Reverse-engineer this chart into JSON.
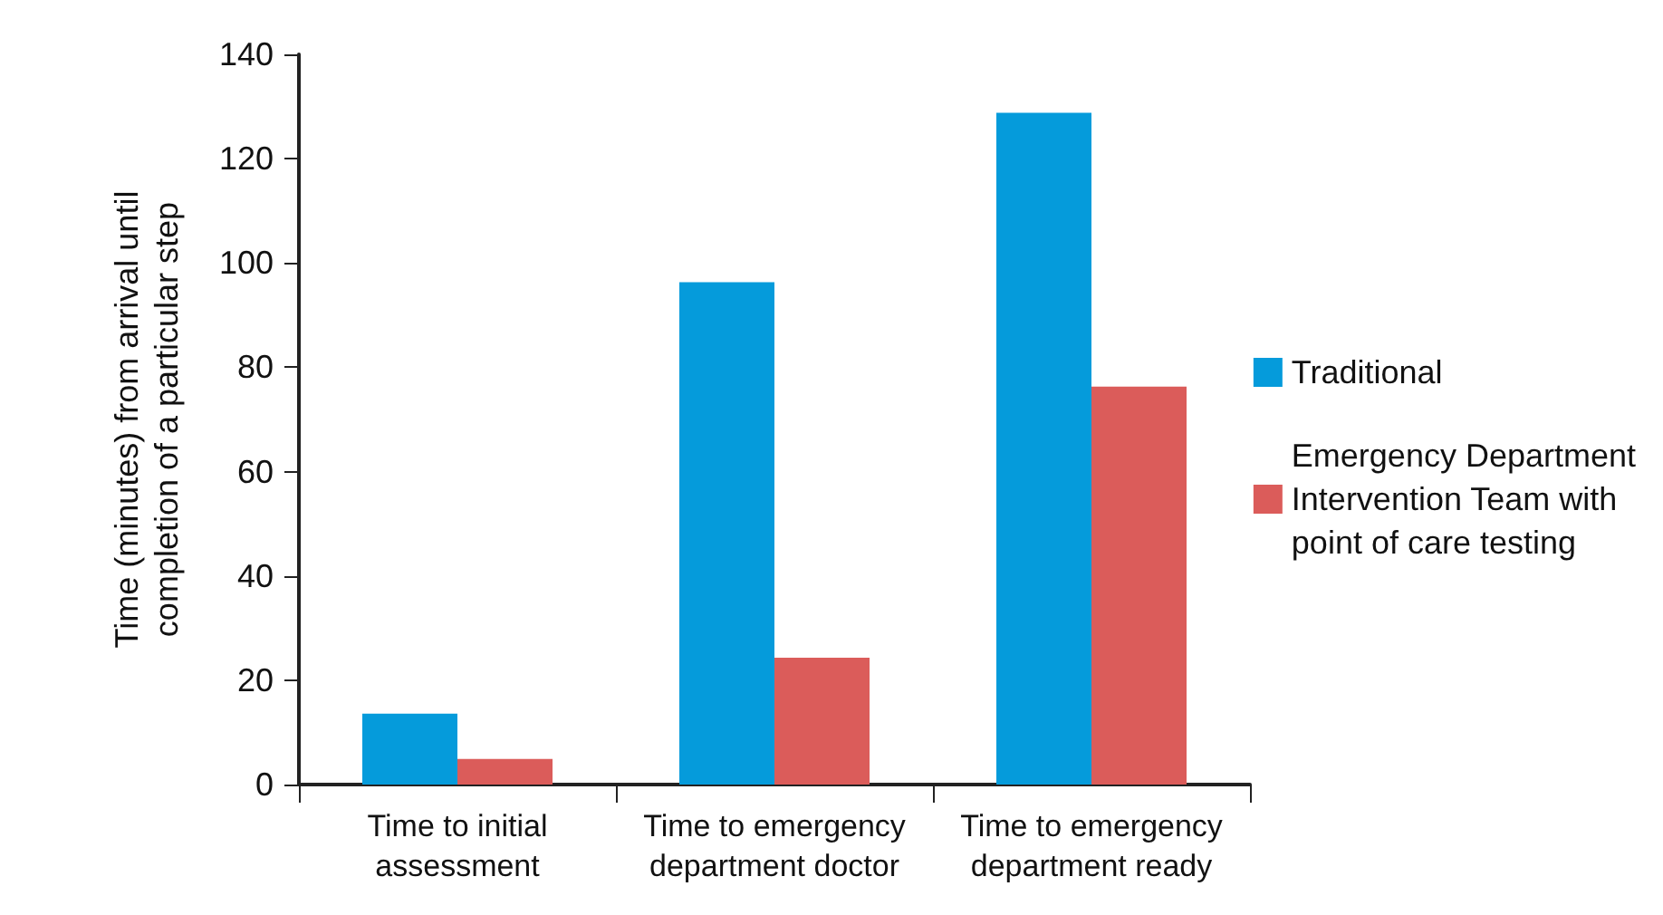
{
  "chart_data": {
    "type": "bar",
    "ylabel": "Time (minutes) from arrival until completion of a particular step",
    "categories": [
      "Time to initial assessment",
      "Time to emergency department doctor",
      "Time to emergency department ready"
    ],
    "series": [
      {
        "name": "Traditional",
        "color": "#059bdb",
        "values": [
          13.6,
          96.3,
          128.8
        ]
      },
      {
        "name": "Emergency Department Intervention Team with point of care testing",
        "color": "#db5c5a",
        "values": [
          4.9,
          24.3,
          76.3
        ]
      }
    ],
    "ylim": [
      0,
      140
    ],
    "yticks": [
      0,
      20,
      40,
      60,
      80,
      100,
      120,
      140
    ],
    "grid": false,
    "legend": "right"
  }
}
